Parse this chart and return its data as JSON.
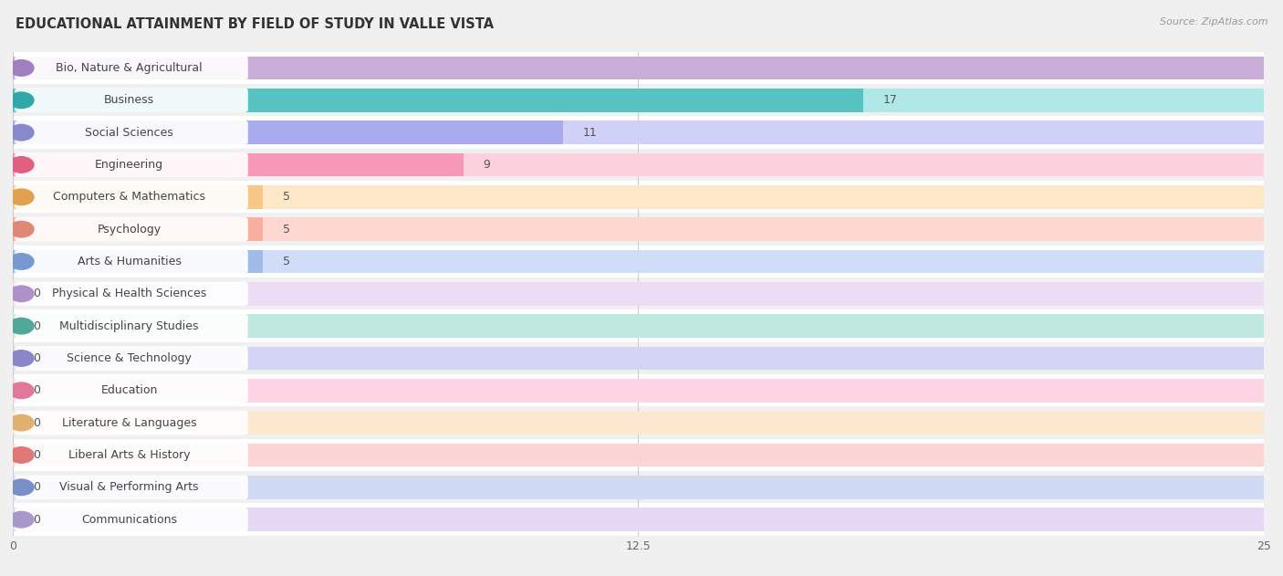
{
  "title": "EDUCATIONAL ATTAINMENT BY FIELD OF STUDY IN VALLE VISTA",
  "source": "Source: ZipAtlas.com",
  "categories": [
    "Bio, Nature & Agricultural",
    "Business",
    "Social Sciences",
    "Engineering",
    "Computers & Mathematics",
    "Psychology",
    "Arts & Humanities",
    "Physical & Health Sciences",
    "Multidisciplinary Studies",
    "Science & Technology",
    "Education",
    "Literature & Languages",
    "Liberal Arts & History",
    "Visual & Performing Arts",
    "Communications"
  ],
  "values": [
    25,
    17,
    11,
    9,
    5,
    5,
    5,
    0,
    0,
    0,
    0,
    0,
    0,
    0,
    0
  ],
  "bar_colors": [
    "#c9afd8",
    "#57c4c4",
    "#aaaaee",
    "#f898b8",
    "#f8c888",
    "#f8b0a0",
    "#a0bce8",
    "#d4b8e0",
    "#7ecebe",
    "#b0b0e0",
    "#f8a0c0",
    "#f8d0a8",
    "#f8a8a8",
    "#a0b8e8",
    "#c8b8e4"
  ],
  "bar_colors_light": [
    "#e8d8f0",
    "#b0e8e8",
    "#d0d0f8",
    "#fcd0dc",
    "#fde8c8",
    "#fcd8d0",
    "#d0dcf8",
    "#ecdcf4",
    "#c0e8e0",
    "#d4d4f4",
    "#fcd4e4",
    "#fce8d0",
    "#fcd4d4",
    "#d0daf4",
    "#e4d8f4"
  ],
  "dot_colors": [
    "#a080c0",
    "#30a8a8",
    "#8888cc",
    "#e06080",
    "#e0a050",
    "#e08878",
    "#7898d0",
    "#b090c8",
    "#50a898",
    "#8888c8",
    "#e07898",
    "#e0b070",
    "#e07878",
    "#7890c8",
    "#a898cc"
  ],
  "xlim": [
    0,
    25
  ],
  "xticks": [
    0,
    12.5,
    25
  ],
  "background_color": "#f0f0f0",
  "row_colors": [
    "#ffffff",
    "#f0f0f0"
  ],
  "title_fontsize": 10.5,
  "label_fontsize": 9,
  "value_fontsize": 9
}
